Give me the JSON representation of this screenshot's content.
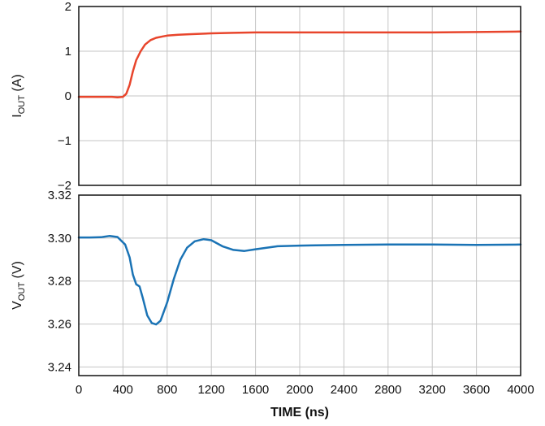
{
  "chart_data": [
    {
      "type": "line",
      "panel": "top",
      "ylabel_main": "I",
      "ylabel_sub": "OUT",
      "ylabel_unit": " (A)",
      "ylim": [
        -2,
        2
      ],
      "y_ticks": [
        2,
        1,
        0,
        -1,
        -2
      ],
      "y_tick_labels": [
        "2",
        "1",
        "0",
        "−1",
        "−2"
      ],
      "xlim": [
        0,
        4000
      ],
      "x_grid": [
        400,
        800,
        1200,
        1600,
        2000,
        2400,
        2800,
        3200,
        3600
      ],
      "grid": true,
      "series": [
        {
          "color": "#e8452c",
          "points": [
            [
              0,
              -0.02
            ],
            [
              100,
              -0.02
            ],
            [
              200,
              -0.02
            ],
            [
              300,
              -0.02
            ],
            [
              350,
              -0.03
            ],
            [
              400,
              -0.02
            ],
            [
              430,
              0.05
            ],
            [
              460,
              0.25
            ],
            [
              490,
              0.55
            ],
            [
              520,
              0.8
            ],
            [
              560,
              1.0
            ],
            [
              600,
              1.15
            ],
            [
              650,
              1.25
            ],
            [
              700,
              1.3
            ],
            [
              760,
              1.33
            ],
            [
              800,
              1.35
            ],
            [
              900,
              1.37
            ],
            [
              1000,
              1.38
            ],
            [
              1200,
              1.4
            ],
            [
              1400,
              1.41
            ],
            [
              1600,
              1.42
            ],
            [
              2000,
              1.42
            ],
            [
              2400,
              1.42
            ],
            [
              2800,
              1.42
            ],
            [
              3200,
              1.42
            ],
            [
              3600,
              1.43
            ],
            [
              4000,
              1.44
            ]
          ]
        }
      ]
    },
    {
      "type": "line",
      "panel": "bottom",
      "ylabel_main": "V",
      "ylabel_sub": "OUT",
      "ylabel_unit": " (V)",
      "ylim": [
        3.236,
        3.32
      ],
      "y_ticks": [
        3.32,
        3.3,
        3.28,
        3.26,
        3.24
      ],
      "y_tick_labels": [
        "3.32",
        "3.30",
        "3.28",
        "3.26",
        "3.24"
      ],
      "xlim": [
        0,
        4000
      ],
      "x_ticks": [
        0,
        400,
        800,
        1200,
        1600,
        2000,
        2400,
        2800,
        3200,
        3600,
        4000
      ],
      "x_tick_labels": [
        "0",
        "400",
        "800",
        "1200",
        "1600",
        "2000",
        "2400",
        "2800",
        "3200",
        "3600",
        "4000"
      ],
      "xlabel": "TIME (ns)",
      "grid": true,
      "series": [
        {
          "color": "#1a73b5",
          "points": [
            [
              0,
              3.3003
            ],
            [
              100,
              3.3003
            ],
            [
              200,
              3.3004
            ],
            [
              280,
              3.301
            ],
            [
              350,
              3.3005
            ],
            [
              420,
              3.297
            ],
            [
              460,
              3.291
            ],
            [
              490,
              3.283
            ],
            [
              520,
              3.2785
            ],
            [
              550,
              3.2775
            ],
            [
              580,
              3.272
            ],
            [
              620,
              3.264
            ],
            [
              660,
              3.2605
            ],
            [
              700,
              3.2598
            ],
            [
              740,
              3.2615
            ],
            [
              800,
              3.27
            ],
            [
              860,
              3.281
            ],
            [
              920,
              3.29
            ],
            [
              980,
              3.2955
            ],
            [
              1050,
              3.2985
            ],
            [
              1130,
              3.2995
            ],
            [
              1200,
              3.299
            ],
            [
              1300,
              3.2962
            ],
            [
              1400,
              3.2945
            ],
            [
              1500,
              3.294
            ],
            [
              1600,
              3.2948
            ],
            [
              1800,
              3.2962
            ],
            [
              2000,
              3.2965
            ],
            [
              2400,
              3.2968
            ],
            [
              2800,
              3.297
            ],
            [
              3200,
              3.297
            ],
            [
              3600,
              3.2968
            ],
            [
              4000,
              3.297
            ]
          ]
        }
      ]
    }
  ]
}
